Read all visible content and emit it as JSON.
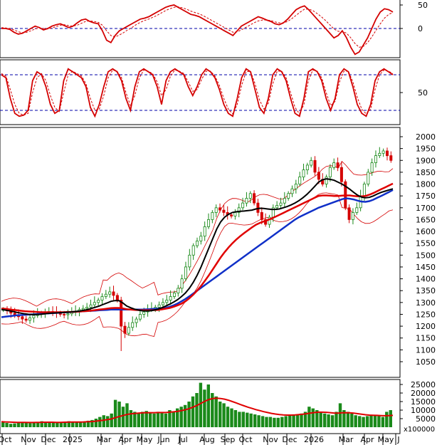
{
  "chart_data": {
    "type": "candlestick",
    "months": [
      "Oct",
      "Nov",
      "Dec",
      "2025",
      "Mar",
      "Apr",
      "May",
      "Jun",
      "Jul",
      "Aug",
      "Sep",
      "Oct",
      "Nov",
      "Dec",
      "2026",
      "Mar",
      "Apr",
      "May",
      "J"
    ],
    "panels": {
      "macd": {
        "y_ticks": [
          "50",
          "0"
        ],
        "series": [
          {
            "color": "#d40000",
            "style": "solid",
            "values": [
              0,
              0,
              -2,
              -8,
              -12,
              -10,
              -5,
              0,
              5,
              2,
              -3,
              0,
              5,
              8,
              10,
              6,
              2,
              5,
              12,
              18,
              20,
              15,
              12,
              10,
              -5,
              -25,
              -30,
              -15,
              -5,
              0,
              5,
              10,
              15,
              20,
              22,
              25,
              30,
              35,
              40,
              45,
              48,
              50,
              45,
              40,
              35,
              30,
              28,
              25,
              20,
              15,
              10,
              5,
              0,
              -5,
              -10,
              -15,
              -5,
              5,
              10,
              15,
              20,
              25,
              22,
              18,
              15,
              10,
              8,
              12,
              20,
              30,
              40,
              45,
              48,
              40,
              30,
              20,
              10,
              0,
              -10,
              -20,
              -15,
              -5,
              -20,
              -40,
              -55,
              -50,
              -35,
              -20,
              0,
              20,
              35,
              42,
              40,
              35
            ]
          },
          {
            "color": "#d40000",
            "style": "dashed",
            "values": [
              2,
              1,
              0,
              -3,
              -7,
              -9,
              -8,
              -5,
              -1,
              1,
              0,
              -1,
              1,
              4,
              7,
              8,
              6,
              5,
              7,
              11,
              15,
              16,
              15,
              13,
              7,
              -5,
              -15,
              -18,
              -14,
              -9,
              -3,
              2,
              8,
              13,
              17,
              20,
              24,
              28,
              33,
              38,
              42,
              45,
              46,
              44,
              41,
              37,
              34,
              31,
              27,
              22,
              17,
              12,
              7,
              2,
              -3,
              -8,
              -7,
              -3,
              2,
              7,
              12,
              16,
              18,
              18,
              17,
              14,
              12,
              12,
              15,
              21,
              28,
              35,
              41,
              41,
              38,
              32,
              25,
              17,
              8,
              -1,
              -6,
              -6,
              -10,
              -20,
              -32,
              -40,
              -38,
              -30,
              -18,
              -4,
              10,
              22,
              30,
              34
            ]
          }
        ]
      },
      "stochastic": {
        "y_ticks": [
          "50"
        ],
        "levels": [
          80,
          20
        ],
        "series": [
          {
            "color": "#d40000",
            "style": "solid",
            "values": [
              80,
              75,
              40,
              15,
              10,
              12,
              20,
              70,
              85,
              80,
              60,
              30,
              15,
              20,
              70,
              90,
              85,
              80,
              75,
              60,
              25,
              10,
              30,
              60,
              85,
              90,
              85,
              70,
              40,
              20,
              60,
              85,
              90,
              85,
              80,
              60,
              30,
              70,
              85,
              90,
              85,
              80,
              60,
              45,
              60,
              80,
              90,
              85,
              75,
              55,
              30,
              15,
              10,
              40,
              75,
              90,
              85,
              55,
              25,
              15,
              40,
              80,
              90,
              85,
              70,
              40,
              15,
              10,
              40,
              85,
              90,
              85,
              70,
              40,
              20,
              40,
              80,
              90,
              85,
              60,
              30,
              15,
              10,
              30,
              70,
              85,
              90,
              85,
              80
            ]
          },
          {
            "color": "#d40000",
            "style": "dashed",
            "values": [
              82,
              78,
              55,
              30,
              15,
              12,
              15,
              50,
              75,
              82,
              70,
              45,
              25,
              18,
              50,
              80,
              86,
              82,
              78,
              65,
              40,
              20,
              22,
              45,
              75,
              88,
              86,
              75,
              50,
              28,
              45,
              75,
              88,
              86,
              82,
              68,
              45,
              55,
              78,
              88,
              86,
              82,
              68,
              52,
              55,
              72,
              86,
              86,
              78,
              62,
              40,
              22,
              14,
              30,
              62,
              85,
              86,
              65,
              38,
              22,
              32,
              65,
              86,
              86,
              75,
              50,
              25,
              14,
              30,
              70,
              88,
              86,
              75,
              50,
              28,
              35,
              68,
              86,
              86,
              68,
              42,
              22,
              14,
              22,
              55,
              80,
              88,
              86,
              82
            ]
          }
        ]
      },
      "price": {
        "y_ticks": [
          "2000",
          "1950",
          "1900",
          "1850",
          "1800",
          "1750",
          "1700",
          "1650",
          "1600",
          "1550",
          "1500",
          "1450",
          "1400",
          "1350",
          "1300",
          "1250",
          "1200",
          "1150",
          "1100",
          "1050"
        ],
        "ylim": [
          1000,
          2010
        ],
        "close": [
          1270,
          1265,
          1255,
          1245,
          1240,
          1230,
          1225,
          1235,
          1245,
          1250,
          1255,
          1260,
          1262,
          1258,
          1255,
          1250,
          1248,
          1252,
          1258,
          1262,
          1270,
          1275,
          1280,
          1290,
          1300,
          1310,
          1325,
          1335,
          1345,
          1330,
          1310,
          1200,
          1170,
          1195,
          1215,
          1230,
          1250,
          1260,
          1270,
          1275,
          1280,
          1290,
          1300,
          1310,
          1325,
          1340,
          1360,
          1400,
          1450,
          1500,
          1540,
          1560,
          1580,
          1620,
          1650,
          1680,
          1700,
          1690,
          1680,
          1670,
          1665,
          1680,
          1700,
          1720,
          1740,
          1760,
          1720,
          1680,
          1650,
          1630,
          1660,
          1700,
          1710,
          1720,
          1740,
          1760,
          1780,
          1800,
          1830,
          1860,
          1880,
          1900,
          1850,
          1820,
          1800,
          1830,
          1870,
          1890,
          1870,
          1810,
          1700,
          1650,
          1680,
          1700,
          1750,
          1800,
          1850,
          1890,
          1920,
          1930,
          1940,
          1920,
          1900
        ],
        "ma20": [
          1270,
          1268,
          1265,
          1262,
          1258,
          1255,
          1252,
          1250,
          1249,
          1249,
          1250,
          1252,
          1254,
          1255,
          1256,
          1257,
          1258,
          1259,
          1260,
          1262,
          1264,
          1267,
          1270,
          1275,
          1280,
          1285,
          1292,
          1298,
          1305,
          1308,
          1308,
          1298,
          1285,
          1278,
          1272,
          1268,
          1265,
          1264,
          1265,
          1268,
          1272,
          1278,
          1285,
          1293,
          1302,
          1312,
          1325,
          1340,
          1360,
          1385,
          1415,
          1450,
          1490,
          1530,
          1570,
          1610,
          1640,
          1660,
          1672,
          1680,
          1683,
          1685,
          1686,
          1688,
          1690,
          1695,
          1698,
          1697,
          1695,
          1693,
          1693,
          1695,
          1700,
          1705,
          1712,
          1720,
          1730,
          1742,
          1756,
          1772,
          1790,
          1808,
          1818,
          1822,
          1820,
          1816,
          1808,
          1800,
          1790,
          1778,
          1765,
          1753,
          1745,
          1742,
          1744,
          1750,
          1758,
          1765,
          1770,
          1775,
          1780
        ],
        "ma50": [
          1275,
          1273,
          1271,
          1269,
          1267,
          1265,
          1263,
          1262,
          1261,
          1260,
          1259,
          1259,
          1259,
          1259,
          1259,
          1259,
          1259,
          1260,
          1260,
          1261,
          1262,
          1263,
          1264,
          1266,
          1268,
          1270,
          1272,
          1274,
          1276,
          1277,
          1277,
          1275,
          1272,
          1270,
          1269,
          1268,
          1267,
          1267,
          1267,
          1268,
          1269,
          1271,
          1274,
          1277,
          1282,
          1288,
          1295,
          1305,
          1318,
          1333,
          1350,
          1370,
          1392,
          1415,
          1440,
          1465,
          1490,
          1512,
          1532,
          1550,
          1566,
          1580,
          1593,
          1605,
          1617,
          1628,
          1636,
          1642,
          1648,
          1655,
          1662,
          1670,
          1678,
          1686,
          1694,
          1702,
          1710,
          1718,
          1726,
          1734,
          1742,
          1750,
          1752,
          1752,
          1751,
          1750,
          1750,
          1751,
          1752,
          1752,
          1750,
          1748,
          1748,
          1750,
          1755,
          1762,
          1770,
          1778,
          1786,
          1794,
          1802
        ],
        "ma200": [
          1238,
          1240,
          1242,
          1244,
          1246,
          1247,
          1248,
          1249,
          1250,
          1251,
          1252,
          1253,
          1254,
          1255,
          1256,
          1257,
          1258,
          1259,
          1260,
          1261,
          1262,
          1263,
          1264,
          1265,
          1266,
          1267,
          1268,
          1269,
          1270,
          1270,
          1270,
          1270,
          1270,
          1270,
          1270,
          1270,
          1270,
          1271,
          1272,
          1273,
          1274,
          1276,
          1278,
          1282,
          1288,
          1296,
          1305,
          1315,
          1326,
          1338,
          1350,
          1362,
          1374,
          1386,
          1398,
          1410,
          1422,
          1434,
          1446,
          1458,
          1470,
          1482,
          1494,
          1506,
          1518,
          1530,
          1542,
          1554,
          1566,
          1578,
          1590,
          1602,
          1614,
          1626,
          1638,
          1650,
          1660,
          1668,
          1676,
          1684,
          1692,
          1700,
          1706,
          1712,
          1718,
          1724,
          1730,
          1736,
          1740,
          1738,
          1735,
          1730,
          1726,
          1725,
          1728,
          1734,
          1742,
          1750,
          1758,
          1766,
          1775
        ]
      },
      "volume": {
        "y_ticks": [
          "25000",
          "20000",
          "15000",
          "10000",
          "5000"
        ],
        "scale_label": "x100000",
        "ylim": [
          0,
          28000
        ],
        "values": [
          3000,
          2500,
          2000,
          2200,
          2800,
          3000,
          2600,
          2400,
          2800,
          3000,
          3500,
          3000,
          2800,
          2600,
          2500,
          2800,
          3200,
          3500,
          3000,
          2800,
          3000,
          3400,
          3800,
          4200,
          5000,
          6000,
          7000,
          6500,
          8000,
          16000,
          15000,
          12000,
          14000,
          10000,
          9000,
          8000,
          9000,
          9500,
          8500,
          8000,
          9000,
          8500,
          8000,
          10000,
          9000,
          11000,
          12000,
          13000,
          15000,
          18000,
          20000,
          26000,
          22000,
          25000,
          20000,
          18000,
          15000,
          14000,
          12000,
          11000,
          10000,
          9000,
          9000,
          8500,
          8000,
          7500,
          7000,
          6500,
          6000,
          6000,
          5500,
          5500,
          6000,
          6500,
          7000,
          7000,
          7500,
          8000,
          9000,
          12000,
          11000,
          10000,
          9000,
          8000,
          7500,
          7000,
          9000,
          14000,
          10000,
          9000,
          8000,
          7000,
          6500,
          6000,
          6500,
          7000,
          7000,
          6500,
          6000,
          9000,
          10000
        ],
        "ma": [
          3200,
          3100,
          3000,
          2900,
          2800,
          2800,
          2800,
          2750,
          2750,
          2800,
          2850,
          2900,
          2900,
          2900,
          2850,
          2850,
          2900,
          2950,
          3000,
          3000,
          3050,
          3100,
          3200,
          3300,
          3500,
          3800,
          4100,
          4400,
          4800,
          5500,
          6200,
          6800,
          7400,
          7800,
          8000,
          8200,
          8400,
          8500,
          8500,
          8500,
          8600,
          8600,
          8600,
          8800,
          9000,
          9300,
          9700,
          10200,
          10900,
          11800,
          12800,
          14000,
          15200,
          16200,
          16800,
          17000,
          16800,
          16400,
          15800,
          15000,
          14200,
          13300,
          12500,
          11700,
          11000,
          10300,
          9700,
          9100,
          8600,
          8100,
          7700,
          7400,
          7200,
          7100,
          7100,
          7200,
          7400,
          7600,
          7900,
          8300,
          8600,
          8800,
          8800,
          8700,
          8500,
          8300,
          8200,
          8400,
          8500,
          8400,
          8200,
          7900,
          7600,
          7300,
          7100,
          7000,
          6900,
          6800,
          6700,
          6800,
          6900
        ]
      }
    }
  },
  "colors": {
    "up": "#1a8a1a",
    "down": "#d40000",
    "ma20": "#000000",
    "ma50": "#e00000",
    "ma200": "#1030c8",
    "bollinger": "#d40000",
    "level_line": "#0000aa",
    "axis": "#000000"
  }
}
